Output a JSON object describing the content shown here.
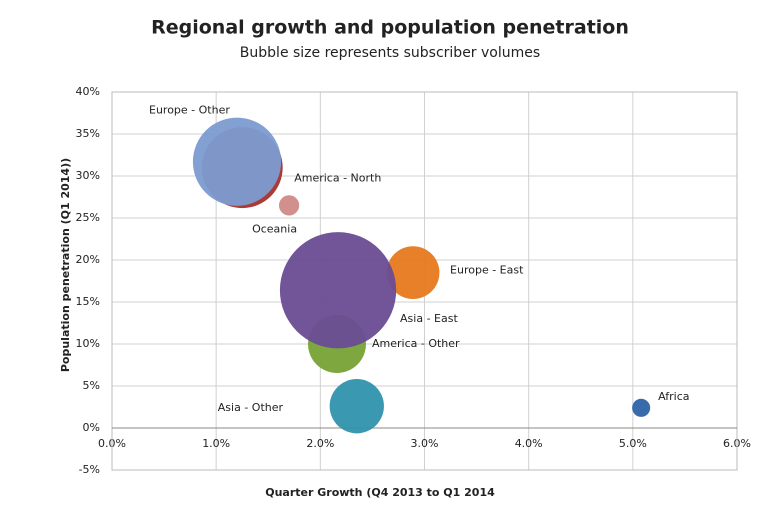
{
  "chart_data": {
    "type": "bubble",
    "title": "Regional growth and population penetration",
    "subtitle": "Bubble size represents subscriber volumes",
    "x_label": "Quarter Growth (Q4 2013 to Q1 2014",
    "y_label": "Population penetration (Q1 2014))",
    "xlim": [
      0,
      6
    ],
    "xticks": [
      {
        "value": 0,
        "label": "0.0%"
      },
      {
        "value": 1,
        "label": "1.0%"
      },
      {
        "value": 2,
        "label": "2.0%"
      },
      {
        "value": 3,
        "label": "3.0%"
      },
      {
        "value": 4,
        "label": "4.0%"
      },
      {
        "value": 5,
        "label": "5.0%"
      },
      {
        "value": 6,
        "label": "6.0%"
      }
    ],
    "ylim": [
      -5,
      40
    ],
    "yticks": [
      {
        "value": -5,
        "label": "-5%"
      },
      {
        "value": 0,
        "label": "0%"
      },
      {
        "value": 5,
        "label": "5%"
      },
      {
        "value": 10,
        "label": "10%"
      },
      {
        "value": 15,
        "label": "15%"
      },
      {
        "value": 20,
        "label": "20%"
      },
      {
        "value": 25,
        "label": "25%"
      },
      {
        "value": 30,
        "label": "30%"
      },
      {
        "value": 35,
        "label": "35%"
      },
      {
        "value": 40,
        "label": "40%"
      }
    ],
    "grid": true,
    "series": [
      {
        "name": "America - North",
        "color": "#a6302b",
        "x": [
          1.25
        ],
        "values": [
          31
        ],
        "size": [
          160
        ]
      },
      {
        "name": "Europe - Other",
        "color": "#7c9bd1",
        "x": [
          1.2
        ],
        "values": [
          31.7
        ],
        "size": [
          190
        ]
      },
      {
        "name": "Oceania",
        "color": "#d08a86",
        "x": [
          1.7
        ],
        "values": [
          26.5
        ],
        "size": [
          10
        ]
      },
      {
        "name": "Europe - East",
        "color": "#e6791e",
        "x": [
          2.89
        ],
        "values": [
          18.5
        ],
        "size": [
          68
        ]
      },
      {
        "name": "America - Other",
        "color": "#77a236",
        "x": [
          2.16
        ],
        "values": [
          10
        ],
        "size": [
          82
        ]
      },
      {
        "name": "Asia - East",
        "color": "#6a4c93",
        "x": [
          2.17
        ],
        "values": [
          16.4
        ],
        "size": [
          330
        ]
      },
      {
        "name": "Asia - Other",
        "color": "#2f93ad",
        "x": [
          2.35
        ],
        "values": [
          2.6
        ],
        "size": [
          72
        ]
      },
      {
        "name": "Africa",
        "color": "#2e62a8",
        "x": [
          5.08
        ],
        "values": [
          2.4
        ],
        "size": [
          8
        ]
      }
    ]
  }
}
